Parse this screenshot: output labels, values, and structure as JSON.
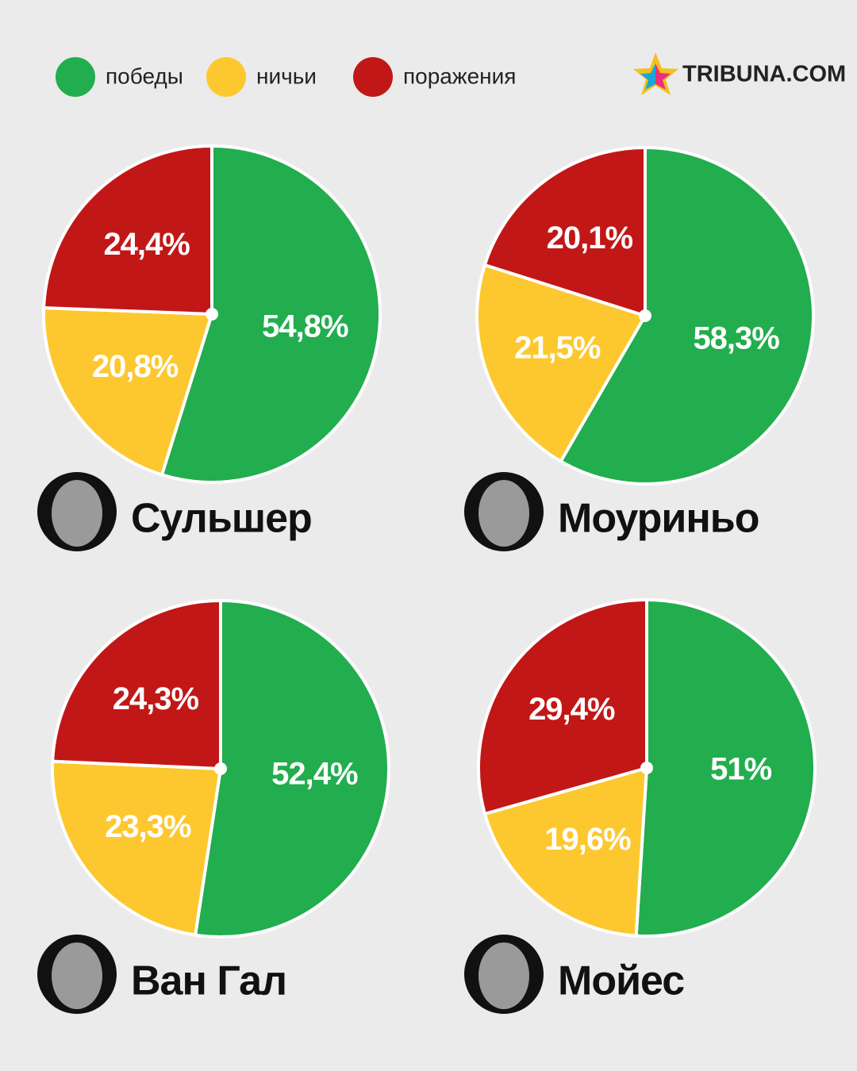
{
  "legend": {
    "categories": [
      "победы",
      "ничьи",
      "поражения"
    ],
    "colors": [
      "#22ad4e",
      "#fdc82f",
      "#c21717"
    ]
  },
  "brand": "TRIBUNA.COM",
  "chart_data": [
    {
      "type": "pie",
      "title": "Сульшер",
      "values": [
        54.8,
        20.8,
        24.4
      ],
      "value_labels": [
        "54,8%",
        "20,8%",
        "24,4%"
      ]
    },
    {
      "type": "pie",
      "title": "Моуриньо",
      "values": [
        58.3,
        21.5,
        20.1
      ],
      "value_labels": [
        "58,3%",
        "21,5%",
        "20,1%"
      ]
    },
    {
      "type": "pie",
      "title": "Ван Гал",
      "values": [
        52.4,
        23.3,
        24.3
      ],
      "value_labels": [
        "52,4%",
        "23,3%",
        "24,3%"
      ]
    },
    {
      "type": "pie",
      "title": "Мойес",
      "values": [
        51,
        19.6,
        29.4
      ],
      "value_labels": [
        "51%",
        "19,6%",
        "29,4%"
      ]
    }
  ]
}
